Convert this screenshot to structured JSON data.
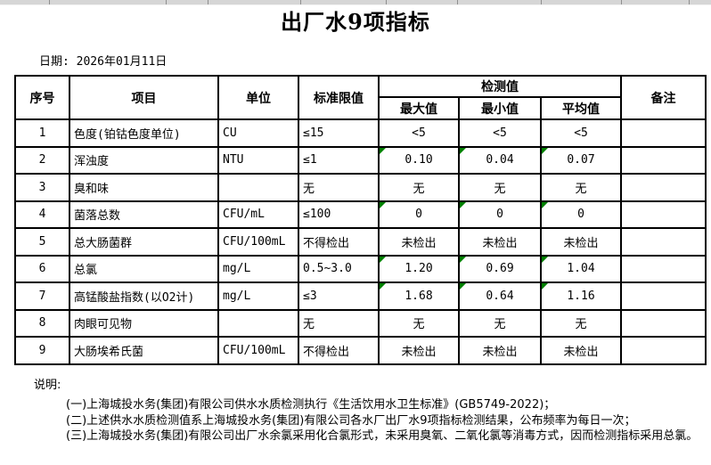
{
  "page": {
    "title": "出厂水9项指标",
    "date_label": "日期: 2026年01月11日"
  },
  "table": {
    "headers": {
      "no": "序号",
      "item": "项目",
      "unit": "单位",
      "limit": "标准限值",
      "detection_group": "检测值",
      "max": "最大值",
      "min": "最小值",
      "avg": "平均值",
      "remark": "备注"
    },
    "rows": [
      {
        "no": "1",
        "item": "色度(铂钴色度单位)",
        "unit": "CU",
        "limit": "≤15",
        "max": "<5",
        "min": "<5",
        "avg": "<5",
        "remark": "",
        "marked": false
      },
      {
        "no": "2",
        "item": "浑浊度",
        "unit": "NTU",
        "limit": "≤1",
        "max": "0.10",
        "min": "0.04",
        "avg": "0.07",
        "remark": "",
        "marked": true
      },
      {
        "no": "3",
        "item": "臭和味",
        "unit": "",
        "limit": "无",
        "max": "无",
        "min": "无",
        "avg": "无",
        "remark": "",
        "marked": false
      },
      {
        "no": "4",
        "item": "菌落总数",
        "unit": "CFU/mL",
        "limit": "≤100",
        "max": "0",
        "min": "0",
        "avg": "0",
        "remark": "",
        "marked": true
      },
      {
        "no": "5",
        "item": "总大肠菌群",
        "unit": "CFU/100mL",
        "limit": "不得检出",
        "max": "未检出",
        "min": "未检出",
        "avg": "未检出",
        "remark": "",
        "marked": false
      },
      {
        "no": "6",
        "item": "总氯",
        "unit": "mg/L",
        "limit": "0.5~3.0",
        "max": "1.20",
        "min": "0.69",
        "avg": "1.04",
        "remark": "",
        "marked": true
      },
      {
        "no": "7",
        "item": "高锰酸盐指数(以O2计)",
        "unit": "mg/L",
        "limit": "≤3",
        "max": "1.68",
        "min": "0.64",
        "avg": "1.16",
        "remark": "",
        "marked": true
      },
      {
        "no": "8",
        "item": "肉眼可见物",
        "unit": "",
        "limit": "无",
        "max": "无",
        "min": "无",
        "avg": "无",
        "remark": "",
        "marked": false
      },
      {
        "no": "9",
        "item": "大肠埃希氏菌",
        "unit": "CFU/100mL",
        "limit": "不得检出",
        "max": "未检出",
        "min": "未检出",
        "avg": "未检出",
        "remark": "",
        "marked": false
      }
    ]
  },
  "notes": {
    "label": "说明:",
    "items": [
      "(一)上海城投水务(集团)有限公司供水水质检测执行《生活饮用水卫生标准》(GB5749-2022)；",
      "(二)上述供水水质检测值系上海城投水务(集团)有限公司各水厂出厂水9项指标检测结果，公布频率为每日一次；",
      "(三)上海城投水务(集团)有限公司出厂水余氯采用化合氯形式，未采用臭氧、二氧化氯等消毒方式，因而检测指标采用总氯。"
    ]
  },
  "colors": {
    "cell_marker_green": "#008000",
    "grid_border": "#000000",
    "top_strip_gray": "#d6d6d6"
  }
}
